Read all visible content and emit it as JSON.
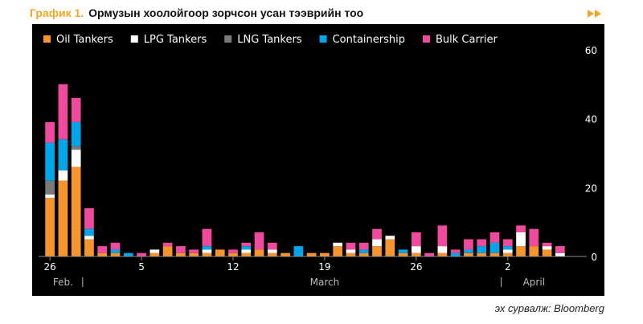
{
  "figure": {
    "label": "График 1.",
    "title": "Ормузын хоолойгоор зорчсон усан тээврийн тоо",
    "source": "эх сурвалж: Bloomberg"
  },
  "chart_data": {
    "type": "bar",
    "stacked": true,
    "x": [
      "2026-02-26",
      "2026-02-27",
      "2026-02-28",
      "2026-03-01",
      "2026-03-02",
      "2026-03-03",
      "2026-03-04",
      "2026-03-05",
      "2026-03-06",
      "2026-03-07",
      "2026-03-08",
      "2026-03-09",
      "2026-03-10",
      "2026-03-11",
      "2026-03-12",
      "2026-03-13",
      "2026-03-14",
      "2026-03-15",
      "2026-03-16",
      "2026-03-17",
      "2026-03-18",
      "2026-03-19",
      "2026-03-20",
      "2026-03-21",
      "2026-03-22",
      "2026-03-23",
      "2026-03-24",
      "2026-03-25",
      "2026-03-26",
      "2026-03-27",
      "2026-03-28",
      "2026-03-29",
      "2026-03-30",
      "2026-03-31",
      "2026-04-01",
      "2026-04-02",
      "2026-04-03",
      "2026-04-04",
      "2026-04-05",
      "2026-04-06"
    ],
    "x_tick_labels": [
      "26",
      "5",
      "12",
      "19",
      "26",
      "2"
    ],
    "x_tick_dates": [
      "2026-02-26",
      "2026-03-05",
      "2026-03-12",
      "2026-03-19",
      "2026-03-26",
      "2026-04-02"
    ],
    "month_labels": [
      "Feb.",
      "March",
      "April"
    ],
    "series": [
      {
        "name": "Oil Tankers",
        "color": "#f7952c",
        "values": [
          17,
          22,
          26,
          5,
          1,
          1,
          0,
          0,
          1,
          3,
          1,
          1,
          1,
          2,
          1,
          1,
          2,
          1,
          1,
          0,
          1,
          1,
          3,
          1,
          1,
          3,
          5,
          1,
          1,
          0,
          1,
          0,
          1,
          1,
          1,
          1,
          3,
          3,
          2,
          0
        ]
      },
      {
        "name": "LPG Tankers",
        "color": "#ffffff",
        "values": [
          1,
          3,
          5,
          1,
          0,
          0,
          0,
          0,
          1,
          0,
          0,
          0,
          1,
          0,
          0,
          1,
          0,
          1,
          0,
          0,
          0,
          0,
          1,
          1,
          0,
          2,
          1,
          0,
          2,
          0,
          2,
          0,
          0,
          0,
          0,
          1,
          4,
          0,
          1,
          1
        ]
      },
      {
        "name": "LNG Tankers",
        "color": "#7a7a7a",
        "values": [
          4,
          0,
          1,
          0,
          0,
          0,
          0,
          0,
          0,
          0,
          0,
          0,
          0,
          0,
          0,
          0,
          0,
          0,
          0,
          0,
          0,
          0,
          0,
          0,
          0,
          0,
          0,
          0,
          0,
          0,
          0,
          0,
          0,
          0,
          0,
          0,
          0,
          0,
          0,
          0
        ]
      },
      {
        "name": "Containership",
        "color": "#00a6e8",
        "values": [
          11,
          9,
          7,
          2,
          0,
          1,
          1,
          0,
          0,
          0,
          0,
          0,
          1,
          0,
          0,
          1,
          0,
          0,
          0,
          3,
          0,
          0,
          0,
          0,
          1,
          0,
          0,
          1,
          0,
          0,
          0,
          1,
          1,
          2,
          3,
          1,
          0,
          0,
          0,
          0
        ]
      },
      {
        "name": "Bulk Carrier",
        "color": "#f04a9e",
        "values": [
          6,
          16,
          7,
          6,
          2,
          2,
          0,
          1,
          0,
          1,
          2,
          1,
          5,
          0,
          1,
          1,
          5,
          2,
          0,
          0,
          0,
          0,
          0,
          2,
          2,
          3,
          0,
          0,
          4,
          1,
          6,
          1,
          3,
          2,
          3,
          2,
          2,
          5,
          1,
          2
        ]
      }
    ],
    "ylim": [
      0,
      63
    ],
    "y_ticks": [
      0,
      20,
      40,
      60
    ],
    "legend_position": "top-left",
    "grid": false
  }
}
